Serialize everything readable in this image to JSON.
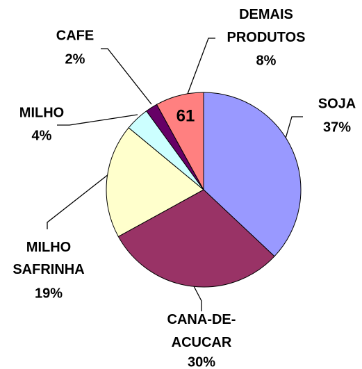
{
  "chart_data": {
    "type": "pie",
    "categories": [
      "SOJA",
      "CANA-DE-ACUCAR",
      "MILHO SAFRINHA",
      "MILHO",
      "CAFE",
      "DEMAIS PRODUTOS"
    ],
    "values": [
      37,
      30,
      19,
      4,
      2,
      8
    ],
    "value_labels": [
      "37%",
      "30%",
      "19%",
      "4%",
      "2%",
      "8%"
    ],
    "colors": [
      "#9999ff",
      "#993366",
      "#ffffcc",
      "#ccffff",
      "#660066",
      "#ff8080"
    ],
    "annotation": "61"
  }
}
